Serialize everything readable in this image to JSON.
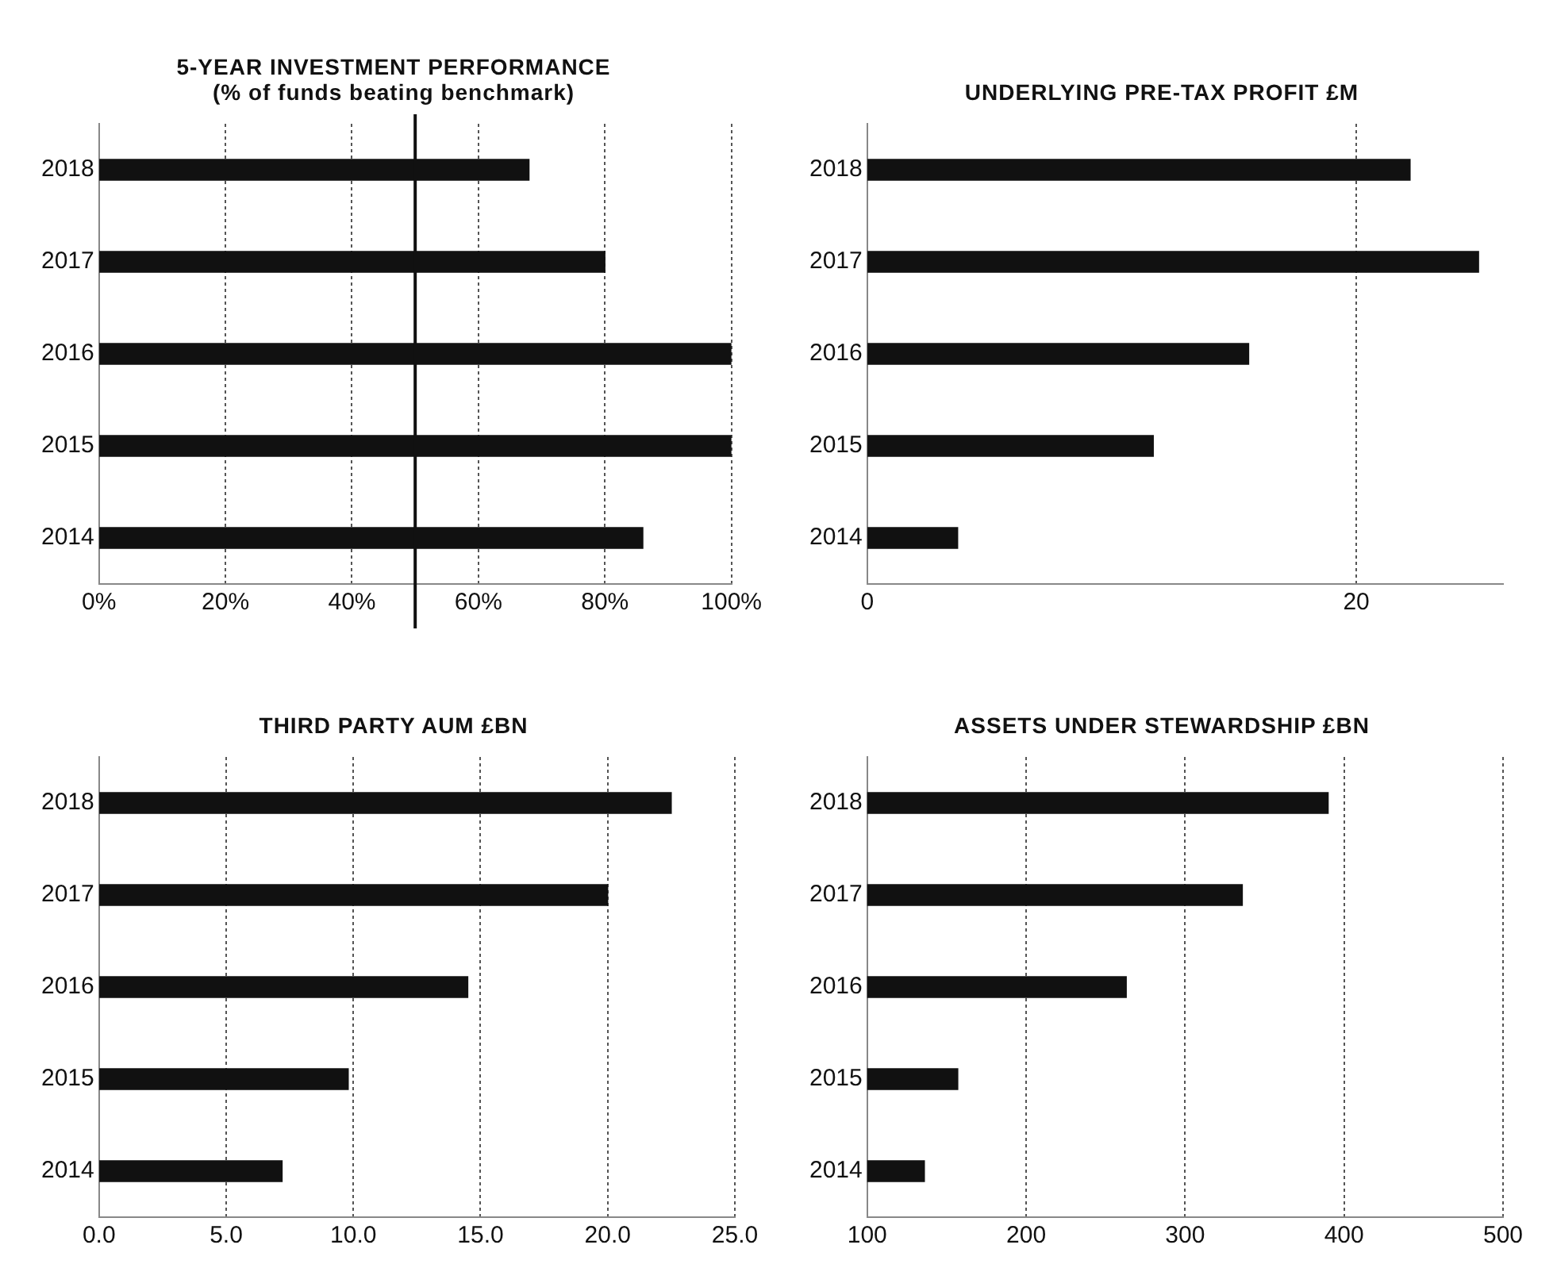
{
  "chart_data": [
    {
      "type": "bar",
      "orientation": "horizontal",
      "title": "5-YEAR INVESTMENT PERFORMANCE (% of funds beating benchmark)",
      "categories": [
        "2018",
        "2017",
        "2016",
        "2015",
        "2014"
      ],
      "values": [
        68,
        80,
        100,
        100,
        86
      ],
      "color": "#111111",
      "xlim": [
        0,
        100
      ],
      "xticks": [
        {
          "value": 0,
          "label": "0%"
        },
        {
          "value": 20,
          "label": "20%"
        },
        {
          "value": 40,
          "label": "40%"
        },
        {
          "value": 60,
          "label": "60%"
        },
        {
          "value": 80,
          "label": "80%"
        },
        {
          "value": 100,
          "label": "100%"
        }
      ],
      "grid": "x",
      "ref_lines": [
        {
          "axis": "x",
          "value": 50,
          "color": "#111111"
        }
      ]
    },
    {
      "type": "bar",
      "orientation": "horizontal",
      "title": "UNDERLYING PRE-TAX PROFIT £M",
      "categories": [
        "2018",
        "2017",
        "2016",
        "2015",
        "2014"
      ],
      "values": [
        22.2,
        25.0,
        15.6,
        11.7,
        3.7
      ],
      "color": "#111111",
      "xlim": [
        0,
        26
      ],
      "xticks": [
        0,
        20
      ],
      "grid": "x"
    },
    {
      "type": "bar",
      "orientation": "horizontal",
      "title": "THIRD PARTY AUM £BN",
      "categories": [
        "2018",
        "2017",
        "2016",
        "2015",
        "2014"
      ],
      "values": [
        22.5,
        20.0,
        14.5,
        9.8,
        7.2
      ],
      "color": "#111111",
      "xlim": [
        0,
        25
      ],
      "xticks": [
        {
          "value": 0,
          "label": "0.0"
        },
        {
          "value": 5,
          "label": "5.0"
        },
        {
          "value": 10,
          "label": "10.0"
        },
        {
          "value": 15,
          "label": "15.0"
        },
        {
          "value": 20,
          "label": "20.0"
        },
        {
          "value": 25,
          "label": "25.0"
        }
      ],
      "grid": "x"
    },
    {
      "type": "bar",
      "orientation": "horizontal",
      "title": "ASSETS UNDER STEWARDSHIP £BN",
      "categories": [
        "2018",
        "2017",
        "2016",
        "2015",
        "2014"
      ],
      "values": [
        390,
        336,
        263,
        157,
        136
      ],
      "color": "#111111",
      "xlim": [
        100,
        500
      ],
      "xticks": [
        100,
        200,
        300,
        400,
        500
      ],
      "grid": "x"
    }
  ]
}
